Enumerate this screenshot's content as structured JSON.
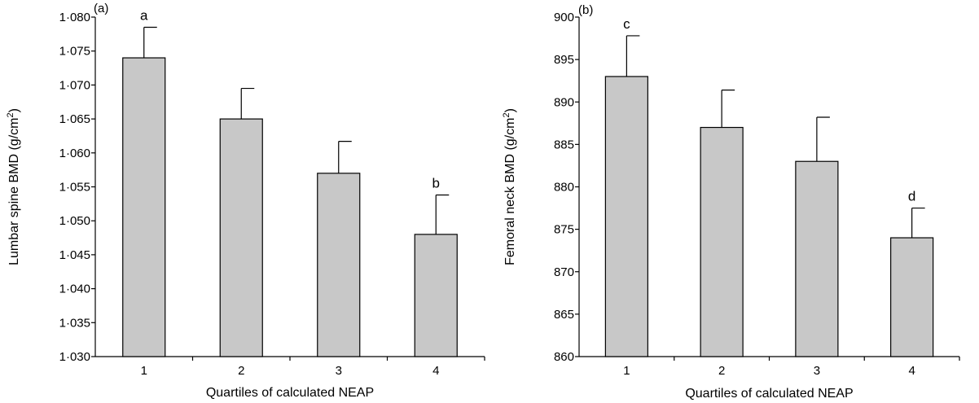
{
  "chart_data": [
    {
      "type": "bar",
      "panel_label": "(a)",
      "categories": [
        "1",
        "2",
        "3",
        "4"
      ],
      "values": [
        1.074,
        1.065,
        1.057,
        1.048
      ],
      "error": [
        0.0045,
        0.0045,
        0.0047,
        0.0058
      ],
      "letters": [
        "a",
        "",
        "",
        "b"
      ],
      "xlabel": "Quartiles of calculated NEAP",
      "ylabel_main": "Lumbar spine BMD (g/cm",
      "ylabel_sup": "2",
      "ylabel_end": ")",
      "ylim": [
        1.03,
        1.08
      ],
      "yticks": [
        1.03,
        1.035,
        1.04,
        1.045,
        1.05,
        1.055,
        1.06,
        1.065,
        1.07,
        1.075,
        1.08
      ],
      "ytick_labels": [
        "1·030",
        "1·035",
        "1·040",
        "1·045",
        "1·050",
        "1·055",
        "1·060",
        "1·065",
        "1·070",
        "1·075",
        "1·080"
      ],
      "bar_color": "#c8c8c8",
      "grid": false
    },
    {
      "type": "bar",
      "panel_label": "(b)",
      "categories": [
        "1",
        "2",
        "3",
        "4"
      ],
      "values": [
        893,
        887,
        883,
        874
      ],
      "error": [
        4.8,
        4.4,
        5.2,
        3.5
      ],
      "letters": [
        "c",
        "",
        "",
        "d"
      ],
      "xlabel": "Quartiles of calculated NEAP",
      "ylabel_main": "Femoral neck BMD (g/cm",
      "ylabel_sup": "2",
      "ylabel_end": ")",
      "ylim": [
        860,
        900
      ],
      "yticks": [
        860,
        865,
        870,
        875,
        880,
        885,
        890,
        895,
        900
      ],
      "ytick_labels": [
        "860",
        "865",
        "870",
        "875",
        "880",
        "885",
        "890",
        "895",
        "900"
      ],
      "bar_color": "#c8c8c8",
      "grid": false
    }
  ]
}
